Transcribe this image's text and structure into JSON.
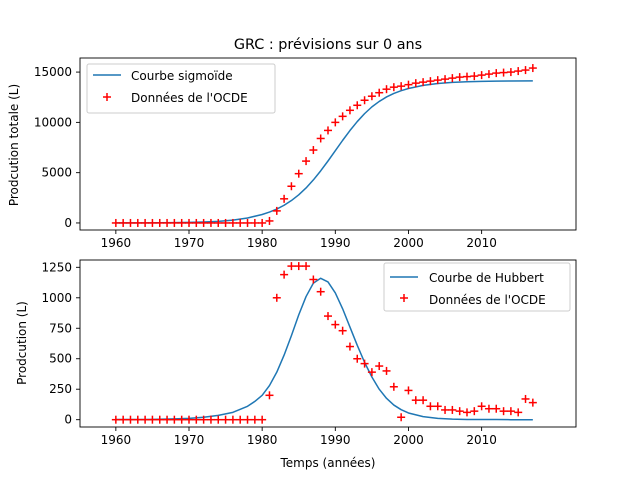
{
  "chart_data": [
    {
      "type": "line",
      "title": "GRC : prévisions sur 0 ans",
      "xlabel": "",
      "ylabel": "Prodcution totale (L)",
      "xlim": [
        1955.1,
        2022.9
      ],
      "ylim": [
        -700,
        16400
      ],
      "xticks": [
        1960,
        1970,
        1980,
        1990,
        2000,
        2010
      ],
      "yticks": [
        0,
        5000,
        10000,
        15000
      ],
      "ytick_labels": [
        "0",
        "5000",
        "10000",
        "15000"
      ],
      "legend_position": "top-left",
      "series": [
        {
          "name": "Courbe sigmoïde",
          "kind": "line",
          "color": "#1f77b4",
          "x": [
            1960,
            1962,
            1964,
            1966,
            1968,
            1970,
            1972,
            1974,
            1976,
            1978,
            1980,
            1981,
            1982,
            1983,
            1984,
            1985,
            1986,
            1987,
            1988,
            1989,
            1990,
            1991,
            1992,
            1993,
            1994,
            1995,
            1996,
            1997,
            1998,
            1999,
            2000,
            2002,
            2004,
            2006,
            2008,
            2010,
            2012,
            2014,
            2017
          ],
          "y": [
            4,
            6,
            10,
            17,
            30,
            53,
            93,
            163,
            285,
            495,
            840,
            1080,
            1380,
            1760,
            2230,
            2800,
            3480,
            4280,
            5180,
            6160,
            7180,
            8210,
            9190,
            10080,
            10870,
            11540,
            12080,
            12530,
            12880,
            13150,
            13370,
            13680,
            13870,
            13980,
            14040,
            14080,
            14100,
            14110,
            14120
          ]
        },
        {
          "name": "Données de l'OCDE",
          "kind": "scatter",
          "marker": "+",
          "color": "#ff0000",
          "x": [
            1960,
            1961,
            1962,
            1963,
            1964,
            1965,
            1966,
            1967,
            1968,
            1969,
            1970,
            1971,
            1972,
            1973,
            1974,
            1975,
            1976,
            1977,
            1978,
            1979,
            1980,
            1981,
            1982,
            1983,
            1984,
            1985,
            1986,
            1987,
            1988,
            1989,
            1990,
            1991,
            1992,
            1993,
            1994,
            1995,
            1996,
            1997,
            1998,
            1999,
            2000,
            2001,
            2002,
            2003,
            2004,
            2005,
            2006,
            2007,
            2008,
            2009,
            2010,
            2011,
            2012,
            2013,
            2014,
            2015,
            2016,
            2017
          ],
          "y": [
            0,
            0,
            0,
            0,
            0,
            0,
            0,
            0,
            0,
            0,
            0,
            0,
            0,
            0,
            0,
            0,
            0,
            0,
            0,
            0,
            0,
            200,
            1200,
            2400,
            3650,
            4900,
            6150,
            7250,
            8400,
            9200,
            10000,
            10600,
            11200,
            11700,
            12200,
            12600,
            12950,
            13300,
            13500,
            13600,
            13750,
            13900,
            14000,
            14100,
            14200,
            14300,
            14400,
            14500,
            14550,
            14600,
            14700,
            14800,
            14900,
            14950,
            15000,
            15100,
            15200,
            15400
          ]
        }
      ]
    },
    {
      "type": "line",
      "title": "",
      "xlabel": "Temps (années)",
      "ylabel": "Prodcution (L)",
      "xlim": [
        1955.1,
        2022.9
      ],
      "ylim": [
        -60,
        1310
      ],
      "xticks": [
        1960,
        1970,
        1980,
        1990,
        2000,
        2010
      ],
      "yticks": [
        0,
        250,
        500,
        750,
        1000,
        1250
      ],
      "ytick_labels": [
        "0",
        "250",
        "500",
        "750",
        "1000",
        "1250"
      ],
      "legend_position": "top-right",
      "series": [
        {
          "name": "Courbe de Hubbert",
          "kind": "line",
          "color": "#1f77b4",
          "x": [
            1960,
            1962,
            1964,
            1966,
            1968,
            1970,
            1972,
            1974,
            1976,
            1978,
            1979,
            1980,
            1981,
            1982,
            1983,
            1984,
            1985,
            1986,
            1987,
            1988,
            1989,
            1990,
            1991,
            1992,
            1993,
            1994,
            1995,
            1996,
            1997,
            1998,
            1999,
            2000,
            2002,
            2004,
            2006,
            2008,
            2010,
            2012,
            2014,
            2017
          ],
          "y": [
            1,
            1,
            2,
            4,
            7,
            11,
            20,
            35,
            60,
            110,
            150,
            200,
            280,
            390,
            530,
            690,
            860,
            1010,
            1120,
            1160,
            1130,
            1040,
            910,
            760,
            610,
            470,
            350,
            250,
            175,
            120,
            82,
            55,
            25,
            11,
            5,
            2,
            1,
            1,
            0,
            0
          ]
        },
        {
          "name": "Données de l'OCDE",
          "kind": "scatter",
          "marker": "+",
          "color": "#ff0000",
          "x": [
            1960,
            1961,
            1962,
            1963,
            1964,
            1965,
            1966,
            1967,
            1968,
            1969,
            1970,
            1971,
            1972,
            1973,
            1974,
            1975,
            1976,
            1977,
            1978,
            1979,
            1980,
            1981,
            1982,
            1983,
            1984,
            1985,
            1986,
            1987,
            1988,
            1989,
            1990,
            1991,
            1992,
            1993,
            1994,
            1995,
            1996,
            1997,
            1998,
            1999,
            2000,
            2001,
            2002,
            2003,
            2004,
            2005,
            2006,
            2007,
            2008,
            2009,
            2010,
            2011,
            2012,
            2013,
            2014,
            2015,
            2016,
            2017
          ],
          "y": [
            0,
            0,
            0,
            0,
            0,
            0,
            0,
            0,
            0,
            0,
            0,
            0,
            0,
            0,
            0,
            0,
            0,
            0,
            0,
            0,
            0,
            200,
            1000,
            1190,
            1260,
            1260,
            1260,
            1150,
            1050,
            850,
            780,
            730,
            600,
            500,
            460,
            390,
            440,
            400,
            270,
            20,
            240,
            160,
            160,
            110,
            110,
            80,
            80,
            70,
            60,
            70,
            110,
            90,
            90,
            70,
            70,
            60,
            170,
            140
          ]
        }
      ]
    }
  ]
}
